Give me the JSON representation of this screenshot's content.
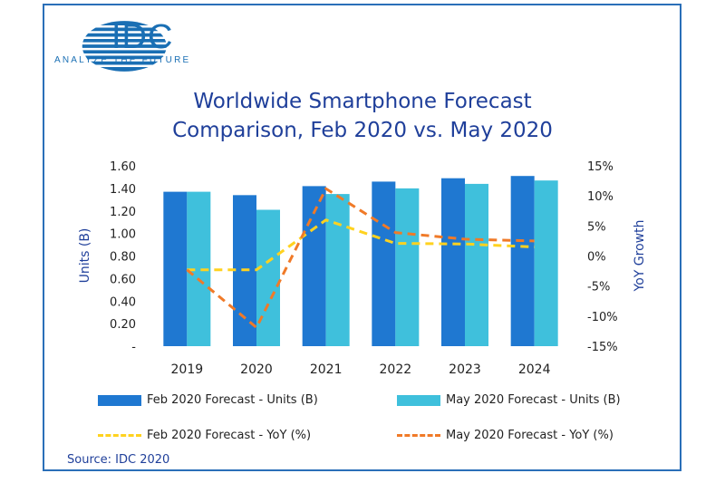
{
  "logo": {
    "name": "IDC",
    "tagline": "ANALYZE THE FUTURE"
  },
  "title_lines": [
    "Worldwide Smartphone Forecast",
    "Comparison, Feb 2020 vs. May 2020"
  ],
  "source": "Source: IDC 2020",
  "colors": {
    "feb_bar": "#1f78d1",
    "may_bar": "#3fc0dc",
    "feb_line": "#ffd21f",
    "may_line": "#f07a28",
    "text": "#1f3f9a"
  },
  "chart_data": {
    "type": "bar",
    "categories": [
      "2019",
      "2020",
      "2021",
      "2022",
      "2023",
      "2024"
    ],
    "series": [
      {
        "name": "Feb 2020 Forecast - Units (B)",
        "kind": "bar",
        "axis": "left",
        "values": [
          1.37,
          1.34,
          1.42,
          1.46,
          1.49,
          1.51
        ]
      },
      {
        "name": "May 2020 Forecast - Units (B)",
        "kind": "bar",
        "axis": "left",
        "values": [
          1.37,
          1.21,
          1.35,
          1.4,
          1.44,
          1.47
        ]
      },
      {
        "name": "Feb 2020 Forecast - YoY (%)",
        "kind": "line",
        "axis": "right",
        "values": [
          -2.3,
          -2.3,
          6.0,
          2.1,
          2.0,
          1.5
        ]
      },
      {
        "name": "May 2020 Forecast - YoY (%)",
        "kind": "line",
        "axis": "right",
        "values": [
          -2.3,
          -11.9,
          11.2,
          3.9,
          2.8,
          2.5
        ]
      }
    ],
    "ylabel": "Units (B)",
    "y2label": "YoY Growth",
    "ylim": [
      0,
      1.6
    ],
    "y2lim": [
      -15,
      15
    ],
    "yticks": [
      "-",
      "0.20",
      "0.40",
      "0.60",
      "0.80",
      "1.00",
      "1.20",
      "1.40",
      "1.60"
    ],
    "y2ticks": [
      "-15%",
      "-10%",
      "-5%",
      "0%",
      "5%",
      "10%",
      "15%"
    ]
  }
}
